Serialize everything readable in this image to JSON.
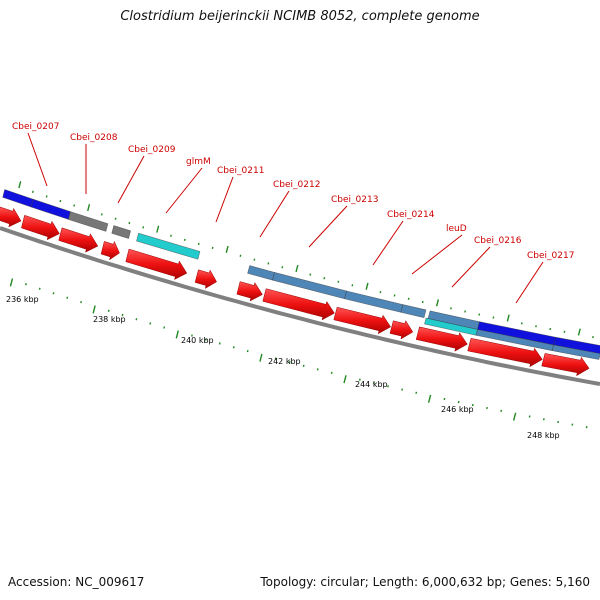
{
  "title": "Clostridium beijerinckii NCIMB 8052, complete genome",
  "footer": {
    "accession": "Accession: NC_009617",
    "summary": "Topology: circular; Length: 6,000,632 bp; Genes: 5,160"
  },
  "colors": {
    "cds": "#ee1111",
    "cog_blue": "#1111dd",
    "cog_gray": "#777777",
    "cog_cyan": "#22cccc",
    "cog_steel": "#4f86b8",
    "gene_label": "#cc0000",
    "tick": "#228822",
    "backbone": "#808080"
  },
  "axis": {
    "unit": "kbp",
    "labels": [
      "236 kbp",
      "238 kbp",
      "240 kbp",
      "242 kbp",
      "244 kbp",
      "246 kbp",
      "248 kbp"
    ]
  },
  "genes": [
    {
      "name": "Cbei_0207",
      "cog_color": "cog_blue"
    },
    {
      "name": "Cbei_0208",
      "cog_color": "cog_gray"
    },
    {
      "name": "Cbei_0209",
      "cog_color": "cog_gray"
    },
    {
      "name": "glmM",
      "cog_color": "cog_cyan"
    },
    {
      "name": "Cbei_0211",
      "cog_color": "none"
    },
    {
      "name": "Cbei_0212",
      "cog_color": "cog_steel"
    },
    {
      "name": "Cbei_0213",
      "cog_color": "cog_steel"
    },
    {
      "name": "Cbei_0214",
      "cog_color": "cog_steel"
    },
    {
      "name": "leuD",
      "cog_color": "cog_steel"
    },
    {
      "name": "Cbei_0216",
      "cog_color": "cog_cyan"
    },
    {
      "name": "Cbei_0217",
      "cog_color": "cog_blue"
    }
  ]
}
